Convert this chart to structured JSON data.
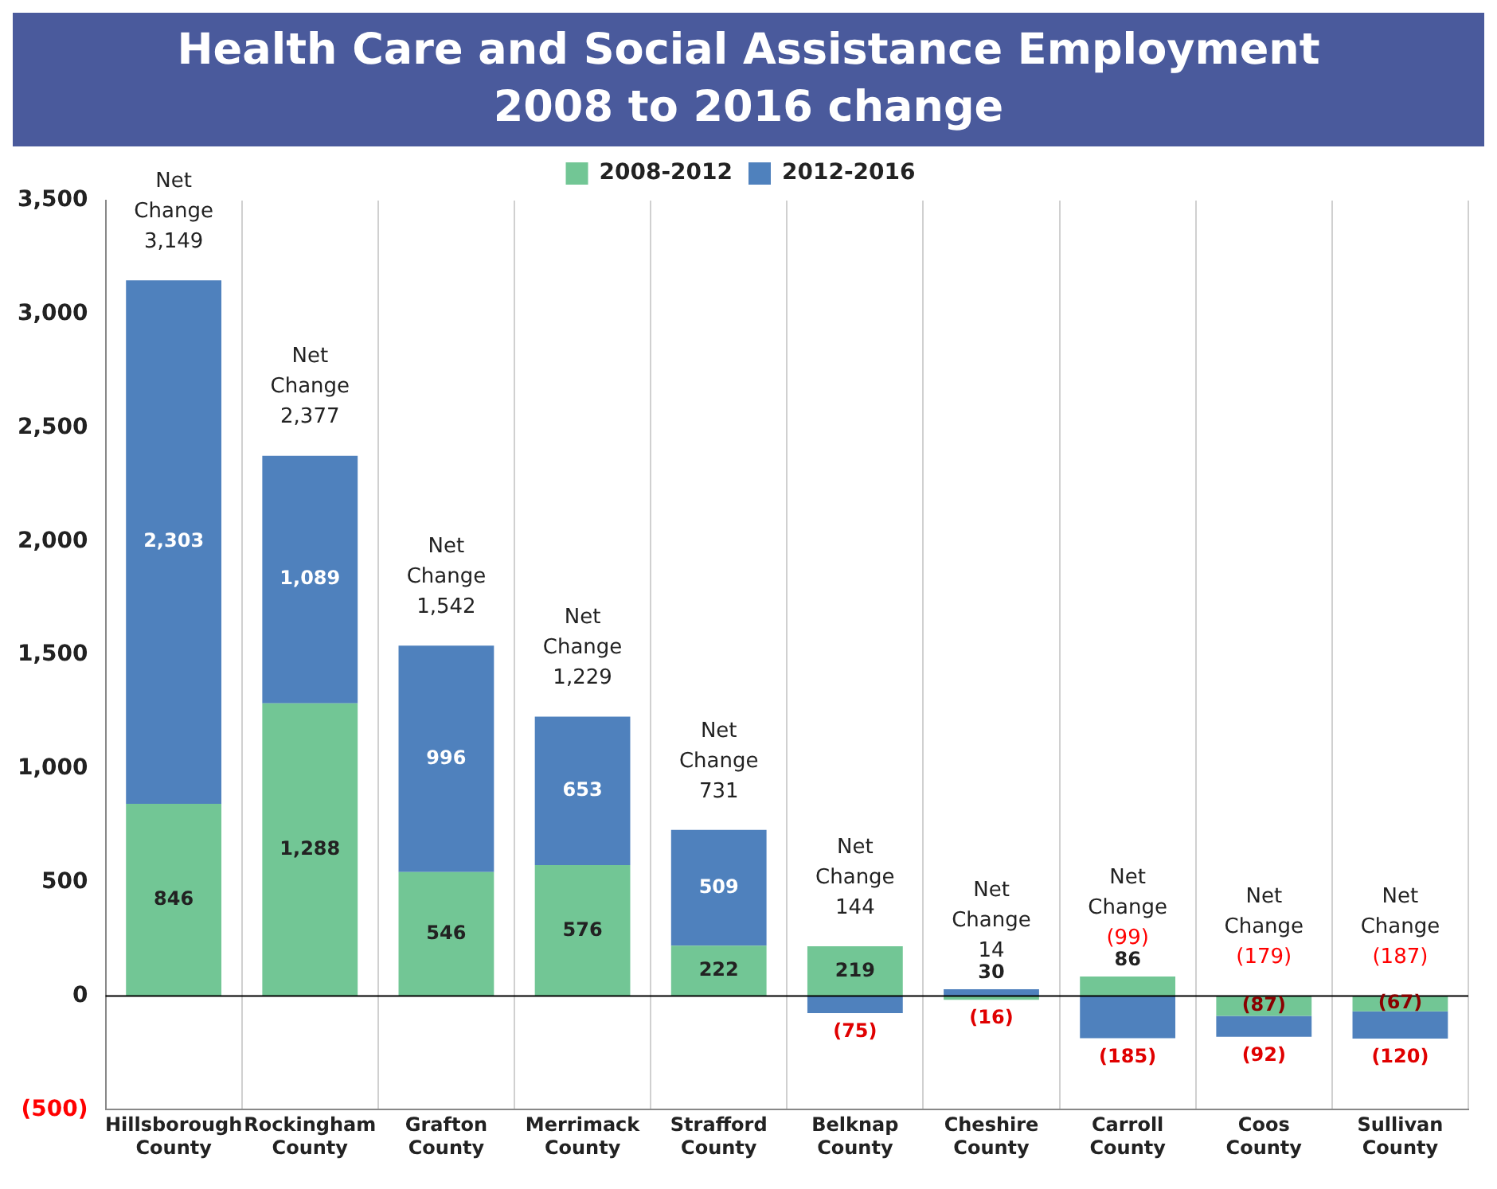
{
  "chart_data": {
    "type": "bar",
    "title": "Health Care and Social Assistance Employment\n2008 to 2016 change",
    "categories": [
      "Hillsborough County",
      "Rockingham County",
      "Grafton County",
      "Merrimack County",
      "Strafford County",
      "Belknap County",
      "Cheshire County",
      "Carroll County",
      "Coos County",
      "Sullivan County"
    ],
    "series": [
      {
        "name": "2008-2012",
        "color": "#72c695",
        "values": [
          846,
          1288,
          546,
          576,
          222,
          219,
          -16,
          86,
          -87,
          -67
        ],
        "value_labels": [
          "846",
          "1,288",
          "546",
          "576",
          "222",
          "219",
          "(16)",
          "86",
          "(87)",
          "(67)"
        ]
      },
      {
        "name": "2012-2016",
        "color": "#4f81bd",
        "values": [
          2303,
          1089,
          996,
          653,
          509,
          -75,
          30,
          -185,
          -92,
          -120
        ],
        "value_labels": [
          "2,303",
          "1,089",
          "996",
          "653",
          "509",
          "(75)",
          "30",
          "(185)",
          "(92)",
          "(120)"
        ]
      }
    ],
    "stacked": true,
    "totals": [
      "3,149",
      "2,377",
      "1,542",
      "1,229",
      "731",
      "144",
      "14",
      "(99)",
      "(179)",
      "(187)"
    ],
    "annotations": [
      "Net Change",
      "Net Change",
      "Net Change",
      "Net Change",
      "Net Change",
      "Net Change",
      "Net Change",
      "Net Change",
      "Net Change",
      "Net Change"
    ],
    "ylim": [
      -500,
      3500
    ],
    "yticks": [
      {
        "value": -500,
        "label": "(500)"
      },
      {
        "value": 0,
        "label": "0"
      },
      {
        "value": 500,
        "label": "500"
      },
      {
        "value": 1000,
        "label": "1,000"
      },
      {
        "value": 1500,
        "label": "1,500"
      },
      {
        "value": 2000,
        "label": "2,000"
      },
      {
        "value": 2500,
        "label": "2,500"
      },
      {
        "value": 3000,
        "label": "3,000"
      },
      {
        "value": 3500,
        "label": "3,500"
      }
    ],
    "ref_lines": [
      {
        "axis": "y",
        "value": 0,
        "color": "#000000"
      }
    ],
    "grid": "x",
    "legend": "top"
  }
}
